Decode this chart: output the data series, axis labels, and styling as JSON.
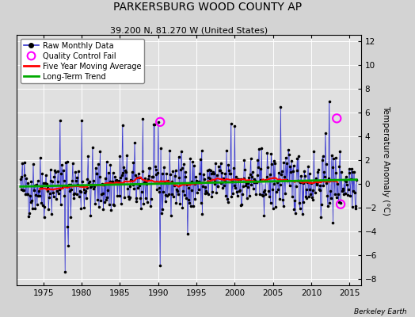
{
  "title": "PARKERSBURG WOOD COUNTY AP",
  "subtitle": "39.200 N, 81.270 W (United States)",
  "ylabel": "Temperature Anomaly (°C)",
  "credit": "Berkeley Earth",
  "xlim": [
    1971.5,
    2016.5
  ],
  "ylim": [
    -8.5,
    12.5
  ],
  "yticks": [
    -8,
    -6,
    -4,
    -2,
    0,
    2,
    4,
    6,
    8,
    10,
    12
  ],
  "xticks": [
    1975,
    1980,
    1985,
    1990,
    1995,
    2000,
    2005,
    2010,
    2015
  ],
  "bg_color": "#d3d3d3",
  "plot_bg_color": "#e0e0e0",
  "grid_color": "white",
  "line_color": "#3333cc",
  "fill_color": "#aaaaee",
  "dot_color": "black",
  "ma_color": "red",
  "trend_color": "#00aa00",
  "qc_color": "magenta",
  "seed": 42,
  "n_months": 528,
  "start_year": 1972,
  "ma_window": 60,
  "qc_fails_times": [
    1990.25,
    2013.33,
    2013.83
  ],
  "qc_fails_vals": [
    5.2,
    5.5,
    -1.7
  ]
}
